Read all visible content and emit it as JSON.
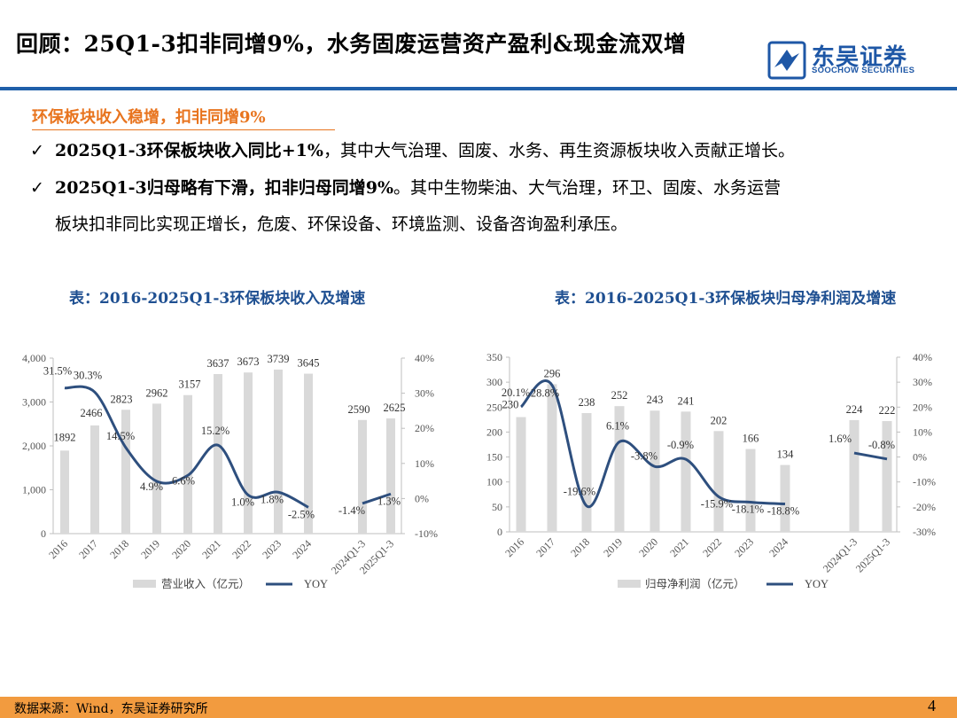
{
  "header": {
    "title": "回顾：25Q1-3扣非同增9%，水务固废运营资产盈利&现金流双增",
    "logo_cn": "东吴证券",
    "logo_en": "SOOCHOW SECURITIES"
  },
  "section": {
    "subheading": "环保板块收入稳增，扣非同增9%",
    "bullet_mark": "✓",
    "bullets": [
      {
        "bold": "2025Q1-3环保板块收入同比+1%",
        "rest": "，其中大气治理、固废、水务、再生资源板块收入贡献正增长。"
      },
      {
        "bold": "2025Q1-3归母略有下滑，扣非归母同增9%",
        "rest": "。其中生物柴油、大气治理，环卫、固废、水务运营",
        "cont": "板块扣非同比实现正增长，危废、环保设备、环境监测、设备咨询盈利承压。"
      }
    ]
  },
  "footer": {
    "source": "数据来源：Wind，东吴证券研究所",
    "page": "4"
  },
  "chart_data": [
    {
      "type": "bar",
      "title": "表：2016-2025Q1-3环保板块收入及增速",
      "categories": [
        "2016",
        "2017",
        "2018",
        "2019",
        "2020",
        "2021",
        "2022",
        "2023",
        "2024",
        "2024Q1-3",
        "2025Q1-3"
      ],
      "series": [
        {
          "name": "营业收入（亿元）",
          "type": "bar",
          "axis": "left",
          "values": [
            1892,
            2466,
            2823,
            2962,
            3157,
            3637,
            3673,
            3739,
            3645,
            2590,
            2625
          ]
        },
        {
          "name": "YOY",
          "type": "line",
          "axis": "right",
          "values": [
            31.5,
            30.3,
            14.5,
            4.9,
            6.6,
            15.2,
            1.0,
            1.8,
            -2.5,
            -1.4,
            1.3
          ]
        }
      ],
      "bar_labels": [
        "1892",
        "2466",
        "2823",
        "2962",
        "3157",
        "3637",
        "3673",
        "3739",
        "3645",
        "2590",
        "2625"
      ],
      "line_labels": [
        "31.5%",
        "30.3%",
        "14.5%",
        "4.9%",
        "6.6%",
        "15.2%",
        "1.0%",
        "1.8%",
        "-2.5%",
        "-1.4%",
        "1.3%"
      ],
      "y_left": {
        "min": 0,
        "max": 4000,
        "ticks": [
          "0",
          "1,000",
          "2,000",
          "3,000",
          "4,000"
        ]
      },
      "y_right": {
        "min": -10,
        "max": 40,
        "ticks": [
          "-10%",
          "0%",
          "10%",
          "20%",
          "30%",
          "40%"
        ]
      },
      "legend": {
        "position": "bottom"
      },
      "grid": false
    },
    {
      "type": "bar",
      "title": "表：2016-2025Q1-3环保板块归母净利润及增速",
      "categories": [
        "2016",
        "2017",
        "2018",
        "2019",
        "2020",
        "2021",
        "2022",
        "2023",
        "2024",
        "2024Q1-3",
        "2025Q1-3"
      ],
      "series": [
        {
          "name": "归母净利润（亿元）",
          "type": "bar",
          "axis": "left",
          "values": [
            230,
            296,
            238,
            252,
            243,
            241,
            202,
            166,
            134,
            224,
            222
          ]
        },
        {
          "name": "YOY",
          "type": "line",
          "axis": "right",
          "values": [
            20.1,
            28.8,
            -19.6,
            6.1,
            -3.8,
            -0.9,
            -15.9,
            -18.1,
            -18.8,
            1.6,
            -0.8
          ]
        }
      ],
      "bar_labels": [
        "230",
        "296",
        "238",
        "252",
        "243",
        "241",
        "202",
        "166",
        "134",
        "224",
        "222"
      ],
      "line_labels": [
        "20.1%",
        "28.8%",
        "-19.6%",
        "6.1%",
        "-3.8%",
        "-0.9%",
        "-15.9%",
        "-18.1%",
        "-18.8%",
        "1.6%",
        "-0.8%"
      ],
      "y_left": {
        "min": 0,
        "max": 350,
        "ticks": [
          "0",
          "50",
          "100",
          "150",
          "200",
          "250",
          "300",
          "350"
        ]
      },
      "y_right": {
        "min": -30,
        "max": 40,
        "ticks": [
          "-30%",
          "-20%",
          "-10%",
          "0%",
          "10%",
          "20%",
          "30%",
          "40%"
        ]
      },
      "legend": {
        "position": "bottom"
      },
      "grid": false
    }
  ],
  "colors": {
    "brand_blue": "#1e57a6",
    "rule_blue": "#1f5fa9",
    "accent_orange": "#e8741e",
    "footer_orange": "#f29b3f",
    "bar_gray": "#d9d9d9",
    "line_navy": "#2e4f7e",
    "axis_text": "#555555"
  }
}
